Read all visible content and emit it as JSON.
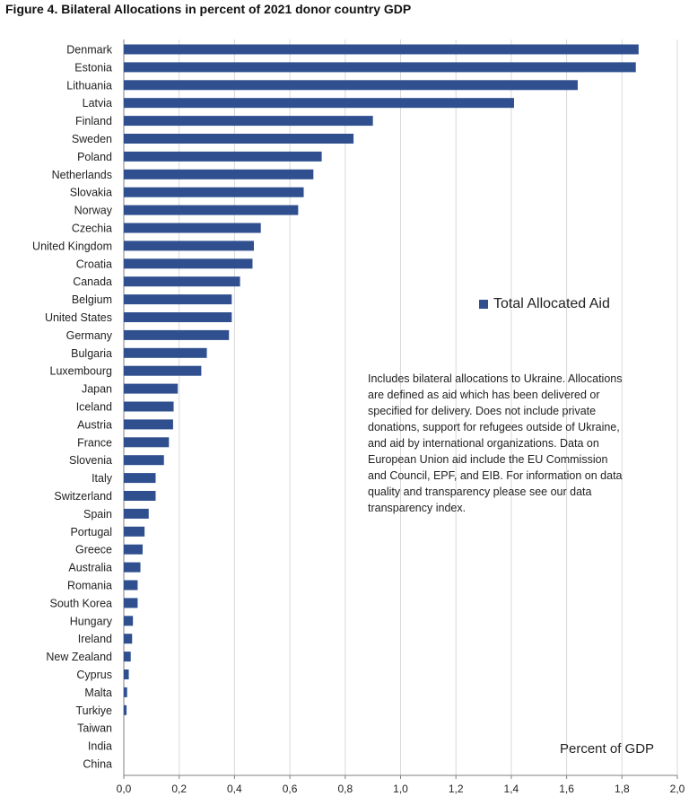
{
  "title": "Figure 4. Bilateral Allocations in percent of 2021 donor country GDP",
  "legend_label": "Total Allocated Aid",
  "note": "Includes bilateral allocations to Ukraine. Allocations are defined as aid which has been delivered or specified for delivery. Does not include private donations, support for refugees outside of Ukraine, and aid by international organizations. Data on European Union aid include the EU Commission and Council, EPF, and EIB. For information on data quality and transparency please see our data transparency index.",
  "colors": {
    "bar": "#2f4f8f",
    "grid": "#d9d9d9"
  },
  "chart_data": {
    "type": "bar",
    "orientation": "horizontal",
    "title": "Figure 4. Bilateral Allocations in percent of 2021 donor country GDP",
    "xlabel": "Percent of GDP",
    "ylabel": "",
    "xlim": [
      0,
      2.0
    ],
    "x_ticks": [
      "0,0",
      "0,2",
      "0,4",
      "0,6",
      "0,8",
      "1,0",
      "1,2",
      "1,4",
      "1,6",
      "1,8",
      "2,0"
    ],
    "grid": true,
    "legend": "right-middle",
    "series": [
      {
        "name": "Total Allocated Aid"
      }
    ],
    "categories": [
      "Denmark",
      "Estonia",
      "Lithuania",
      "Latvia",
      "Finland",
      "Sweden",
      "Poland",
      "Netherlands",
      "Slovakia",
      "Norway",
      "Czechia",
      "United Kingdom",
      "Croatia",
      "Canada",
      "Belgium",
      "United States",
      "Germany",
      "Bulgaria",
      "Luxembourg",
      "Japan",
      "Iceland",
      "Austria",
      "France",
      "Slovenia",
      "Italy",
      "Switzerland",
      "Spain",
      "Portugal",
      "Greece",
      "Australia",
      "Romania",
      "South Korea",
      "Hungary",
      "Ireland",
      "New Zealand",
      "Cyprus",
      "Malta",
      "Turkiye",
      "Taiwan",
      "India",
      "China"
    ],
    "values": [
      1.86,
      1.85,
      1.64,
      1.41,
      0.9,
      0.83,
      0.715,
      0.685,
      0.65,
      0.63,
      0.495,
      0.47,
      0.465,
      0.42,
      0.39,
      0.39,
      0.38,
      0.3,
      0.28,
      0.195,
      0.18,
      0.178,
      0.163,
      0.145,
      0.115,
      0.115,
      0.09,
      0.075,
      0.068,
      0.06,
      0.05,
      0.05,
      0.033,
      0.03,
      0.025,
      0.018,
      0.012,
      0.01,
      0.0,
      0.0,
      0.0
    ]
  }
}
